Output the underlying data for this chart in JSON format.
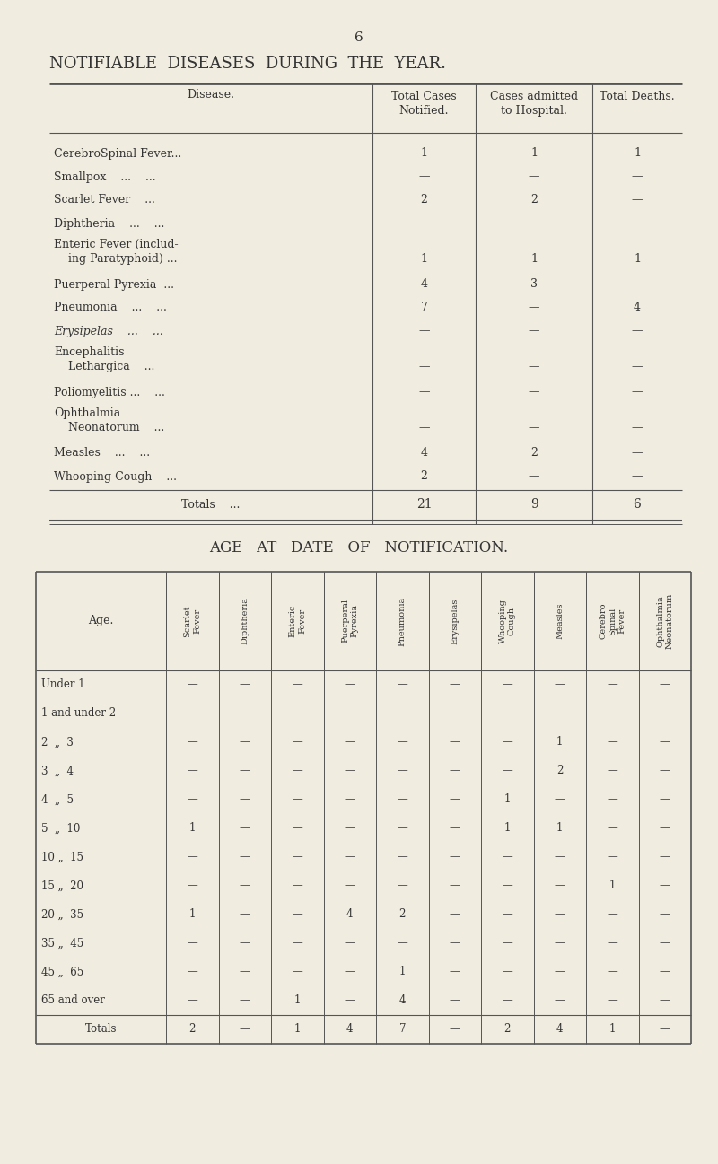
{
  "bg_color": "#f0ece0",
  "page_number": "6",
  "title": "NOTIFIABLE  DISEASES  DURING  THE  YEAR.",
  "table1": {
    "col_headers": [
      "Disease.",
      "Total Cases\nNotified.",
      "Cases admitted\nto Hospital.",
      "Total Deaths."
    ],
    "rows": [
      {
        "name": "CerebroSpinal Fever...",
        "line2": null,
        "italic": false,
        "vals": [
          "1",
          "1",
          "1"
        ]
      },
      {
        "name": "Smallpox    ...    ...",
        "line2": null,
        "italic": false,
        "vals": [
          "—",
          "—",
          "—"
        ]
      },
      {
        "name": "Scarlet Fever    ...",
        "line2": null,
        "italic": false,
        "vals": [
          "2",
          "2",
          "—"
        ]
      },
      {
        "name": "Diphtheria    ...    ...",
        "line2": null,
        "italic": false,
        "vals": [
          "—",
          "—",
          "—"
        ]
      },
      {
        "name": "Enteric Fever (includ-",
        "line2": "    ing Paratyphoid) ...",
        "italic": false,
        "vals": [
          "1",
          "1",
          "1"
        ]
      },
      {
        "name": "Puerperal Pyrexia  ...",
        "line2": null,
        "italic": false,
        "vals": [
          "4",
          "3",
          "—"
        ]
      },
      {
        "name": "Pneumonia    ...    ...",
        "line2": null,
        "italic": false,
        "vals": [
          "7",
          "—",
          "4"
        ]
      },
      {
        "name": "Erysipelas    ...    ...",
        "line2": null,
        "italic": true,
        "vals": [
          "—",
          "—",
          "—"
        ]
      },
      {
        "name": "Encephalitis",
        "line2": "    Lethargica    ...",
        "italic": false,
        "vals": [
          "—",
          "—",
          "—"
        ]
      },
      {
        "name": "Poliomyelitis ...    ...",
        "line2": null,
        "italic": false,
        "vals": [
          "—",
          "—",
          "—"
        ]
      },
      {
        "name": "Ophthalmia",
        "line2": "    Neonatorum    ...",
        "italic": false,
        "vals": [
          "—",
          "—",
          "—"
        ]
      },
      {
        "name": "Measles    ...    ...",
        "line2": null,
        "italic": false,
        "vals": [
          "4",
          "2",
          "—"
        ]
      },
      {
        "name": "Whooping Cough    ...",
        "line2": null,
        "italic": false,
        "vals": [
          "2",
          "—",
          "—"
        ]
      }
    ],
    "totals": [
      "Totals    ...",
      "21",
      "9",
      "6"
    ]
  },
  "title2": "AGE   AT   DATE   OF   NOTIFICATION.",
  "table2": {
    "col_headers": [
      "Age.",
      "Scarlet\nFever",
      "Diphtheria",
      "Enteric\nFever",
      "Puerperal\nPyrexia",
      "Pneumonia",
      "Erysipelas",
      "Whooping\nCough",
      "Measles",
      "Cerebro\nSpinal\nFever",
      "Ophthalmia\nNeonatorum"
    ],
    "rows": [
      [
        "Under 1",
        "—",
        "—",
        "—",
        "—",
        "—",
        "—",
        "—",
        "—",
        "—",
        "—"
      ],
      [
        "1 and under 2",
        "—",
        "—",
        "—",
        "—",
        "—",
        "—",
        "—",
        "—",
        "—",
        "—"
      ],
      [
        "2  „  3",
        "—",
        "—",
        "—",
        "—",
        "—",
        "—",
        "—",
        "1",
        "—",
        "—"
      ],
      [
        "3  „  4",
        "—",
        "—",
        "—",
        "—",
        "—",
        "—",
        "—",
        "2",
        "—",
        "—"
      ],
      [
        "4  „  5",
        "—",
        "—",
        "—",
        "—",
        "—",
        "—",
        "1",
        "—",
        "—",
        "—"
      ],
      [
        "5  „  10",
        "1",
        "—",
        "—",
        "—",
        "—",
        "—",
        "1",
        "1",
        "—",
        "—"
      ],
      [
        "10 „  15",
        "—",
        "—",
        "—",
        "—",
        "—",
        "—",
        "—",
        "—",
        "—",
        "—"
      ],
      [
        "15 „  20",
        "—",
        "—",
        "—",
        "—",
        "—",
        "—",
        "—",
        "—",
        "1",
        "—"
      ],
      [
        "20 „  35",
        "1",
        "—",
        "—",
        "4",
        "2",
        "—",
        "—",
        "—",
        "—",
        "—"
      ],
      [
        "35 „  45",
        "—",
        "—",
        "—",
        "—",
        "—",
        "—",
        "—",
        "—",
        "—",
        "—"
      ],
      [
        "45 „  65",
        "—",
        "—",
        "—",
        "—",
        "1",
        "—",
        "—",
        "—",
        "—",
        "—"
      ],
      [
        "65 and over",
        "—",
        "—",
        "1",
        "—",
        "4",
        "—",
        "—",
        "—",
        "—",
        "—"
      ]
    ],
    "totals": [
      "Totals",
      "2",
      "—",
      "1",
      "4",
      "7",
      "—",
      "2",
      "4",
      "1",
      "—"
    ]
  }
}
